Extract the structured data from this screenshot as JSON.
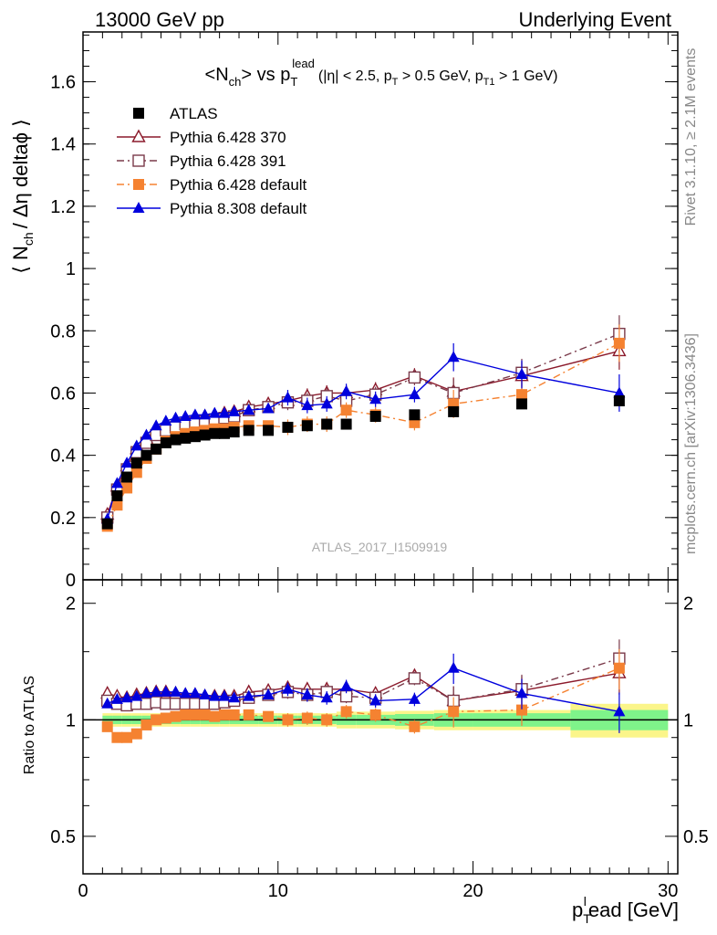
{
  "header": {
    "left": "13000 GeV pp",
    "right": "Underlying Event"
  },
  "side": {
    "rivet": "Rivet 3.1.10, ≥ 2.1M events",
    "mcplots": "mcplots.cern.ch [arXiv:1306.3436]"
  },
  "watermark": "ATLAS_2017_I1509919",
  "chart_data": [
    {
      "type": "scatter",
      "title": {
        "main_a": "<N",
        "main_sub": "ch",
        "main_b": "> vs p",
        "main_sub2": "T",
        "main_sup": "lead",
        "cut_a": "(|η| < 2.5, p",
        "cut_sub1": "T",
        "cut_b": " > 0.5 GeV, p",
        "cut_sub2": "T1",
        "cut_c": " > 1 GeV)"
      },
      "ylabel": {
        "a": "⟨ N",
        "sub": "ch",
        "b": "/ Δη deltaϕ ⟩"
      },
      "xlim": [
        0,
        30.5
      ],
      "ylim": [
        0,
        1.76
      ],
      "yticks": [
        0,
        0.2,
        0.4,
        0.6,
        0.8,
        1,
        1.2,
        1.4,
        1.6
      ],
      "ytick_labels": [
        "0",
        "0.2",
        "0.4",
        "0.6",
        "0.8",
        "1",
        "1.2",
        "1.4",
        "1.6"
      ],
      "legend_position": "top-left",
      "series": [
        {
          "name": "ATLAS",
          "color": "#000000",
          "marker": "square-filled",
          "line": "none",
          "x": [
            1.25,
            1.75,
            2.25,
            2.75,
            3.25,
            3.75,
            4.25,
            4.75,
            5.25,
            5.75,
            6.25,
            6.75,
            7.25,
            7.75,
            8.5,
            9.5,
            10.5,
            11.5,
            12.5,
            13.5,
            15,
            17,
            19,
            22.5,
            27.5
          ],
          "y": [
            0.18,
            0.27,
            0.33,
            0.375,
            0.4,
            0.42,
            0.44,
            0.45,
            0.455,
            0.46,
            0.465,
            0.47,
            0.47,
            0.475,
            0.48,
            0.48,
            0.49,
            0.495,
            0.5,
            0.5,
            0.525,
            0.53,
            0.54,
            0.565,
            0.575
          ]
        },
        {
          "name": "Pythia 6.428 370",
          "color": "#8b1a2b",
          "marker": "triangle-open",
          "line": "solid",
          "x": [
            1.25,
            1.75,
            2.25,
            2.75,
            3.25,
            3.75,
            4.25,
            4.75,
            5.25,
            5.75,
            6.25,
            6.75,
            7.25,
            7.75,
            8.5,
            9.5,
            10.5,
            11.5,
            12.5,
            13.5,
            15,
            17,
            19,
            22.5,
            27.5
          ],
          "y": [
            0.21,
            0.3,
            0.365,
            0.42,
            0.455,
            0.48,
            0.495,
            0.505,
            0.515,
            0.52,
            0.525,
            0.53,
            0.535,
            0.54,
            0.555,
            0.565,
            0.575,
            0.59,
            0.6,
            0.6,
            0.61,
            0.655,
            0.605,
            0.655,
            0.735
          ]
        },
        {
          "name": "Pythia 6.428 391",
          "color": "#7a3a4a",
          "marker": "square-open",
          "line": "dashdot",
          "x": [
            1.25,
            1.75,
            2.25,
            2.75,
            3.25,
            3.75,
            4.25,
            4.75,
            5.25,
            5.75,
            6.25,
            6.75,
            7.25,
            7.75,
            8.5,
            9.5,
            10.5,
            11.5,
            12.5,
            13.5,
            15,
            17,
            19,
            22.5,
            27.5
          ],
          "y": [
            0.2,
            0.29,
            0.355,
            0.41,
            0.44,
            0.465,
            0.48,
            0.49,
            0.5,
            0.505,
            0.51,
            0.515,
            0.52,
            0.525,
            0.545,
            0.555,
            0.57,
            0.575,
            0.59,
            0.575,
            0.595,
            0.65,
            0.6,
            0.665,
            0.79
          ]
        },
        {
          "name": "Pythia 6.428 default",
          "color": "#f58231",
          "marker": "square-filled",
          "line": "dashdot",
          "x": [
            1.25,
            1.75,
            2.25,
            2.75,
            3.25,
            3.75,
            4.25,
            4.75,
            5.25,
            5.75,
            6.25,
            6.75,
            7.25,
            7.75,
            8.5,
            9.5,
            10.5,
            11.5,
            12.5,
            13.5,
            15,
            17,
            19,
            22.5,
            27.5
          ],
          "y": [
            0.172,
            0.24,
            0.295,
            0.345,
            0.39,
            0.42,
            0.445,
            0.46,
            0.47,
            0.475,
            0.48,
            0.485,
            0.485,
            0.49,
            0.495,
            0.495,
            0.49,
            0.5,
            0.5,
            0.545,
            0.53,
            0.505,
            0.565,
            0.595,
            0.76
          ]
        },
        {
          "name": "Pythia 8.308 default",
          "color": "#0000dd",
          "marker": "triangle-filled",
          "line": "solid",
          "x": [
            1.25,
            1.75,
            2.25,
            2.75,
            3.25,
            3.75,
            4.25,
            4.75,
            5.25,
            5.75,
            6.25,
            6.75,
            7.25,
            7.75,
            8.5,
            9.5,
            10.5,
            11.5,
            12.5,
            13.5,
            15,
            17,
            19,
            22.5,
            27.5
          ],
          "y": [
            0.195,
            0.31,
            0.375,
            0.43,
            0.465,
            0.495,
            0.51,
            0.52,
            0.525,
            0.53,
            0.53,
            0.535,
            0.535,
            0.54,
            0.545,
            0.55,
            0.585,
            0.56,
            0.565,
            0.605,
            0.58,
            0.595,
            0.715,
            0.66,
            0.6
          ]
        }
      ]
    },
    {
      "type": "scatter",
      "ylabel": "Ratio to ATLAS",
      "xlabel": {
        "a": "p",
        "sub": "T",
        "sup": "l",
        "b": "ead [GeV]"
      },
      "xlim": [
        0,
        30.5
      ],
      "ylim": [
        0.4,
        2.3
      ],
      "log_y": true,
      "xticks": [
        0,
        10,
        20,
        30
      ],
      "xtick_labels": [
        "0",
        "10",
        "20",
        "30"
      ],
      "yticks": [
        0.5,
        1,
        2
      ],
      "ytick_labels": [
        "0.5",
        "1",
        "2"
      ],
      "band_edges": [
        1,
        1.5,
        2,
        2.5,
        3,
        3.5,
        4,
        4.5,
        5,
        5.5,
        6,
        6.5,
        7,
        7.5,
        8,
        9,
        10,
        11,
        12,
        13,
        14,
        16,
        18,
        20,
        25,
        30
      ],
      "band_inner": [
        0.025,
        0.025,
        0.025,
        0.025,
        0.025,
        0.025,
        0.025,
        0.025,
        0.025,
        0.025,
        0.025,
        0.025,
        0.025,
        0.025,
        0.025,
        0.025,
        0.025,
        0.025,
        0.025,
        0.03,
        0.03,
        0.035,
        0.04,
        0.04,
        0.06
      ],
      "band_outer": [
        0.04,
        0.04,
        0.04,
        0.04,
        0.04,
        0.04,
        0.04,
        0.04,
        0.04,
        0.04,
        0.04,
        0.04,
        0.04,
        0.04,
        0.04,
        0.04,
        0.04,
        0.04,
        0.04,
        0.05,
        0.05,
        0.055,
        0.06,
        0.06,
        0.1
      ],
      "series": [
        {
          "name": "Pythia 6.428 370",
          "color": "#8b1a2b",
          "marker": "triangle-open",
          "line": "solid",
          "x": [
            1.25,
            1.75,
            2.25,
            2.75,
            3.25,
            3.75,
            4.25,
            4.75,
            5.25,
            5.75,
            6.25,
            6.75,
            7.25,
            7.75,
            8.5,
            9.5,
            10.5,
            11.5,
            12.5,
            13.5,
            15,
            17,
            19,
            22.5,
            27.5
          ],
          "y": [
            1.17,
            1.15,
            1.14,
            1.16,
            1.17,
            1.18,
            1.18,
            1.17,
            1.16,
            1.16,
            1.15,
            1.15,
            1.15,
            1.15,
            1.18,
            1.19,
            1.21,
            1.2,
            1.2,
            1.2,
            1.17,
            1.3,
            1.12,
            1.19,
            1.32
          ]
        },
        {
          "name": "Pythia 6.428 391",
          "color": "#7a3a4a",
          "marker": "square-open",
          "line": "dashdot",
          "x": [
            1.25,
            1.75,
            2.25,
            2.75,
            3.25,
            3.75,
            4.25,
            4.75,
            5.25,
            5.75,
            6.25,
            6.75,
            7.25,
            7.75,
            8.5,
            9.5,
            10.5,
            11.5,
            12.5,
            13.5,
            15,
            17,
            19,
            22.5,
            27.5
          ],
          "y": [
            1.12,
            1.1,
            1.09,
            1.1,
            1.1,
            1.11,
            1.1,
            1.1,
            1.1,
            1.1,
            1.1,
            1.1,
            1.11,
            1.12,
            1.14,
            1.16,
            1.18,
            1.16,
            1.18,
            1.15,
            1.14,
            1.28,
            1.12,
            1.2,
            1.44
          ]
        },
        {
          "name": "Pythia 6.428 default",
          "color": "#f58231",
          "marker": "square-filled",
          "line": "dashdot",
          "x": [
            1.25,
            1.75,
            2.25,
            2.75,
            3.25,
            3.75,
            4.25,
            4.75,
            5.25,
            5.75,
            6.25,
            6.75,
            7.25,
            7.75,
            8.5,
            9.5,
            10.5,
            11.5,
            12.5,
            13.5,
            15,
            17,
            19,
            22.5,
            27.5
          ],
          "y": [
            0.96,
            0.9,
            0.9,
            0.92,
            0.97,
            1.0,
            1.01,
            1.02,
            1.03,
            1.03,
            1.03,
            1.02,
            1.03,
            1.03,
            1.03,
            1.02,
            1.0,
            1.01,
            1.0,
            1.05,
            1.03,
            0.96,
            1.05,
            1.06,
            1.36
          ]
        },
        {
          "name": "Pythia 8.308 default",
          "color": "#0000dd",
          "marker": "triangle-filled",
          "line": "solid",
          "x": [
            1.25,
            1.75,
            2.25,
            2.75,
            3.25,
            3.75,
            4.25,
            4.75,
            5.25,
            5.75,
            6.25,
            6.75,
            7.25,
            7.75,
            8.5,
            9.5,
            10.5,
            11.5,
            12.5,
            13.5,
            15,
            17,
            19,
            22.5,
            27.5
          ],
          "y": [
            1.1,
            1.13,
            1.14,
            1.15,
            1.17,
            1.18,
            1.18,
            1.18,
            1.17,
            1.17,
            1.16,
            1.15,
            1.15,
            1.14,
            1.15,
            1.16,
            1.2,
            1.16,
            1.14,
            1.22,
            1.12,
            1.13,
            1.36,
            1.17,
            1.05
          ]
        }
      ]
    }
  ]
}
